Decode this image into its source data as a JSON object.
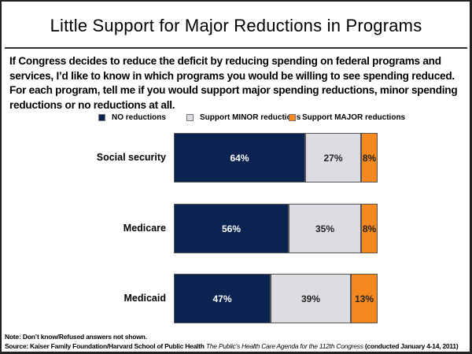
{
  "title": "Little Support for Major Reductions in Programs",
  "question": "If Congress decides to reduce the deficit by reducing spending on federal programs and services, I’d like to know in which programs you would be willing to see spending reduced. For each program, tell me if you would support major spending reductions, minor spending reductions or no reductions at all.",
  "footer": {
    "note": "Note: Don’t know/Refused answers not shown.",
    "source_prefix": "Source: Kaiser Family Foundation/Harvard School of Public Health ",
    "source_title": "The Public’s Health Care Agenda for the 112th Congress",
    "source_suffix": " (conducted January 4-14, 2011)"
  },
  "chart_data": {
    "type": "bar",
    "orientation": "horizontal",
    "stacked": true,
    "title": "Little Support for Major Reductions in Programs",
    "xlabel": "",
    "ylabel": "",
    "xlim": [
      0,
      100
    ],
    "grid": false,
    "legend_position": "top",
    "categories": [
      "Social security",
      "Medicare",
      "Medicaid"
    ],
    "series": [
      {
        "name": "NO reductions",
        "color": "#0b2350",
        "label_color": "#ffffff",
        "values": [
          64,
          56,
          47
        ],
        "labels": [
          "64%",
          "56%",
          "47%"
        ]
      },
      {
        "name": "Support MINOR reductions",
        "color": "#dcdce2",
        "label_color": "#222222",
        "values": [
          27,
          35,
          39
        ],
        "labels": [
          "27%",
          "35%",
          "39%"
        ]
      },
      {
        "name": "Support MAJOR reductions",
        "color": "#f5891f",
        "label_color": "#222222",
        "values": [
          8,
          8,
          13
        ],
        "labels": [
          "8%",
          "8%",
          "13%"
        ]
      }
    ]
  }
}
